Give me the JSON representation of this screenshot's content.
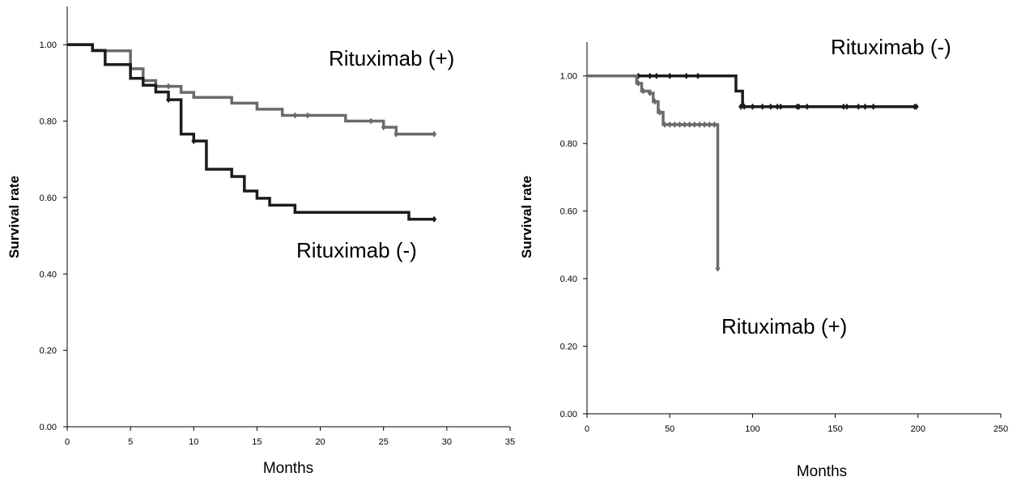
{
  "chart_data": [
    {
      "type": "line",
      "step": true,
      "xlabel": "Months",
      "ylabel": "Survival rate",
      "xlim": [
        0,
        35
      ],
      "ylim": [
        0,
        1.1
      ],
      "x_ticks": [
        "0",
        "5",
        "10",
        "15",
        "20",
        "25",
        "30",
        "35"
      ],
      "y_ticks": [
        "0.00",
        "0.20",
        "0.40",
        "0.60",
        "0.80",
        "1.00"
      ],
      "grid": false,
      "annotations": [
        {
          "text": "Rituximab (+)",
          "near_series": "Rituximab (+)"
        },
        {
          "text": "Rituximab (-)",
          "near_series": "Rituximab (-)"
        }
      ],
      "series": [
        {
          "name": "Rituximab (+)",
          "color": "#6b6b6b",
          "steps": [
            [
              0,
              1.0
            ],
            [
              2,
              0.984
            ],
            [
              5,
              0.937
            ],
            [
              6,
              0.906
            ],
            [
              7,
              0.891
            ],
            [
              9,
              0.875
            ],
            [
              10,
              0.862
            ],
            [
              13,
              0.847
            ],
            [
              15,
              0.831
            ],
            [
              17,
              0.815
            ],
            [
              22,
              0.8
            ],
            [
              25,
              0.784
            ],
            [
              26,
              0.766
            ],
            [
              29,
              0.766
            ]
          ],
          "censored": [
            [
              8,
              0.891
            ],
            [
              18,
              0.815
            ],
            [
              19,
              0.815
            ],
            [
              24,
              0.8
            ],
            [
              25,
              0.784
            ],
            [
              26,
              0.766
            ],
            [
              29,
              0.766
            ]
          ]
        },
        {
          "name": "Rituximab (-)",
          "color": "#1c1c1c",
          "steps": [
            [
              0,
              1.0
            ],
            [
              2,
              0.985
            ],
            [
              3,
              0.948
            ],
            [
              5,
              0.912
            ],
            [
              6,
              0.894
            ],
            [
              7,
              0.876
            ],
            [
              8,
              0.856
            ],
            [
              9,
              0.766
            ],
            [
              10,
              0.748
            ],
            [
              11,
              0.674
            ],
            [
              13,
              0.655
            ],
            [
              14,
              0.617
            ],
            [
              15,
              0.598
            ],
            [
              16,
              0.58
            ],
            [
              18,
              0.561
            ],
            [
              27,
              0.543
            ],
            [
              29,
              0.543
            ]
          ],
          "censored": [
            [
              8,
              0.856
            ],
            [
              10,
              0.748
            ],
            [
              29,
              0.543
            ]
          ]
        }
      ]
    },
    {
      "type": "line",
      "step": true,
      "xlabel": "Months",
      "ylabel": "Survival rate",
      "xlim": [
        0,
        250
      ],
      "ylim": [
        0,
        1.1
      ],
      "x_ticks": [
        "0",
        "50",
        "100",
        "150",
        "200",
        "250"
      ],
      "y_ticks": [
        "0.00",
        "0.20",
        "0.40",
        "0.60",
        "0.80",
        "1.00"
      ],
      "grid": false,
      "annotations": [
        {
          "text": "Rituximab (-)",
          "near_series": "Rituximab (-)"
        },
        {
          "text": "Rituximab (+)",
          "near_series": "Rituximab (+)"
        }
      ],
      "series": [
        {
          "name": "Rituximab (-)",
          "color": "#1c1c1c",
          "steps": [
            [
              0,
              1.0
            ],
            [
              79,
              1.0
            ],
            [
              90,
              0.955
            ],
            [
              94,
              0.909
            ],
            [
              199,
              0.909
            ]
          ],
          "censored": [
            [
              31,
              1.0
            ],
            [
              38,
              1.0
            ],
            [
              42,
              1.0
            ],
            [
              50,
              1.0
            ],
            [
              60,
              1.0
            ],
            [
              67,
              1.0
            ],
            [
              93,
              0.909
            ],
            [
              95,
              0.909
            ],
            [
              100,
              0.909
            ],
            [
              106,
              0.909
            ],
            [
              111,
              0.909
            ],
            [
              115,
              0.909
            ],
            [
              117,
              0.909
            ],
            [
              127,
              0.909
            ],
            [
              128,
              0.909
            ],
            [
              133,
              0.909
            ],
            [
              155,
              0.909
            ],
            [
              157,
              0.909
            ],
            [
              164,
              0.909
            ],
            [
              168,
              0.909
            ],
            [
              173,
              0.909
            ],
            [
              198,
              0.909
            ],
            [
              199,
              0.909
            ]
          ]
        },
        {
          "name": "Rituximab (+)",
          "color": "#6b6b6b",
          "steps": [
            [
              0,
              1.0
            ],
            [
              30,
              0.978
            ],
            [
              33,
              0.955
            ],
            [
              38,
              0.949
            ],
            [
              40,
              0.924
            ],
            [
              43,
              0.892
            ],
            [
              46,
              0.856
            ],
            [
              79,
              0.856
            ],
            [
              79,
              0.43
            ]
          ],
          "censored": [
            [
              31,
              0.978
            ],
            [
              34,
              0.955
            ],
            [
              38,
              0.949
            ],
            [
              41,
              0.924
            ],
            [
              44,
              0.892
            ],
            [
              47,
              0.856
            ],
            [
              50,
              0.856
            ],
            [
              53,
              0.856
            ],
            [
              56,
              0.856
            ],
            [
              59,
              0.856
            ],
            [
              62,
              0.856
            ],
            [
              65,
              0.856
            ],
            [
              68,
              0.856
            ],
            [
              71,
              0.856
            ],
            [
              74,
              0.856
            ],
            [
              77,
              0.856
            ],
            [
              79,
              0.43
            ]
          ]
        }
      ]
    }
  ]
}
